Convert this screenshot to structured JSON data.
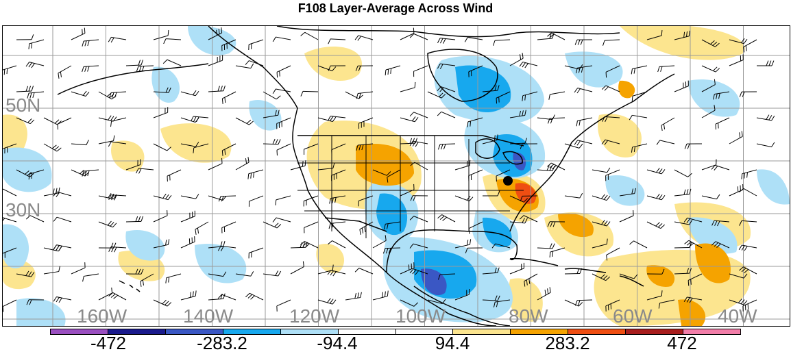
{
  "title": "F108 Layer-Average Across Wind",
  "lat_labels": [
    "50N",
    "30N"
  ],
  "lon_labels": [
    "160W",
    "140W",
    "120W",
    "100W",
    "80W",
    "60W",
    "40W"
  ],
  "legend": {
    "colors": [
      "#9a4fc0",
      "#1a1a8c",
      "#3a57c4",
      "#17a8ee",
      "#aee0f7",
      "#ffffff",
      "#ffffff",
      "#fce58f",
      "#f5a300",
      "#ef4e12",
      "#a81e1e",
      "#f27ea9"
    ],
    "labels": [
      "-472",
      "-283.2",
      "-94.4",
      "94.4",
      "283.2",
      "472"
    ]
  },
  "colors": {
    "light_blue": "#aee0f7",
    "mid_blue": "#17a8ee",
    "deep_blue": "#3a57c4",
    "light_yellow": "#fce58f",
    "orange": "#f5a300",
    "red_orange": "#ef4e12",
    "grid": "#9a9a9a",
    "label_gray": "#8a8a8a"
  },
  "marker": "black-dot"
}
